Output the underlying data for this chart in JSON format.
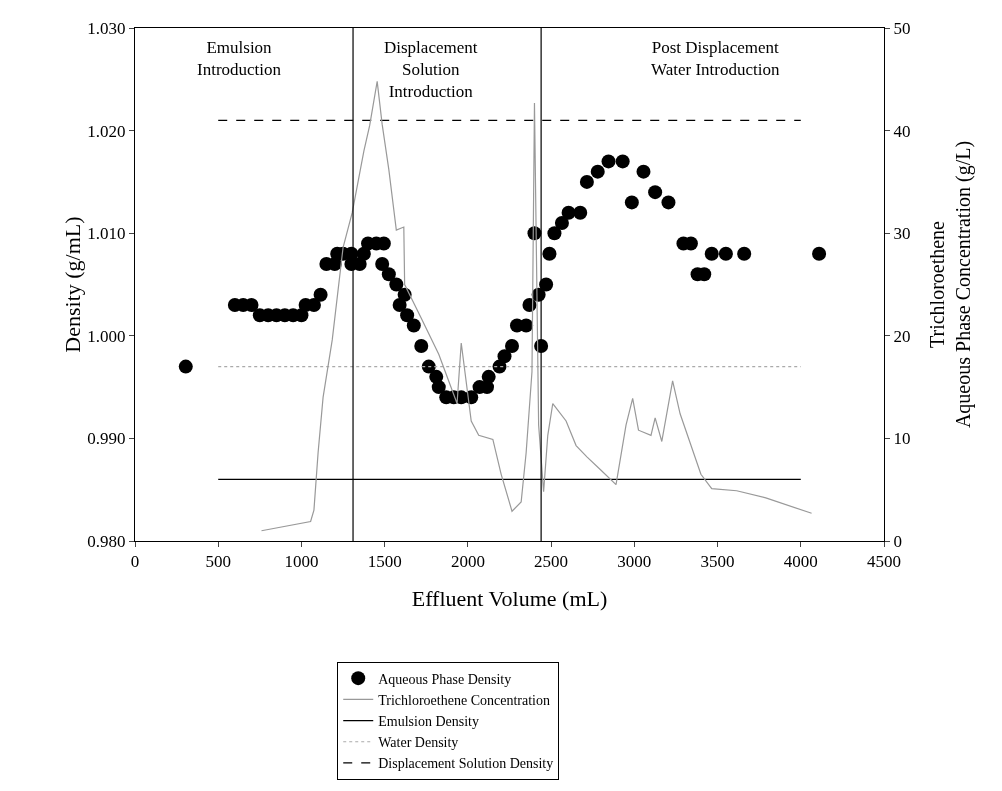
{
  "chart_data": {
    "type": "line",
    "xlabel": "Effluent Volume (mL)",
    "ylabel": "Density (g/mL)",
    "y2label": "Trichloroethene\nAqueous Phase Concentration (g/L)",
    "xlim": [
      0,
      4500
    ],
    "xticks": [
      0,
      500,
      1000,
      1500,
      2000,
      2500,
      3000,
      3500,
      4000,
      4500
    ],
    "ylim": [
      0.98,
      1.03
    ],
    "yticks": [
      {
        "value": 0.98,
        "label": "0.980"
      },
      {
        "value": 0.99,
        "label": "0.990"
      },
      {
        "value": 1.0,
        "label": "1.000"
      },
      {
        "value": 1.01,
        "label": "1.010"
      },
      {
        "value": 1.02,
        "label": "1.020"
      },
      {
        "value": 1.03,
        "label": "1.030"
      }
    ],
    "y2lim": [
      0,
      50
    ],
    "y2ticks": [
      0,
      10,
      20,
      30,
      40,
      50
    ],
    "grid": false,
    "legend": "bottom",
    "annotations": [
      "Emulsion\nIntroduction",
      "Displacement\nSolution\nIntroduction",
      "Post Displacement\nWater Introduction"
    ],
    "ref_lines": [
      {
        "axis": "x",
        "value": 1310,
        "color": "#000000"
      },
      {
        "axis": "x",
        "value": 2440,
        "color": "#000000"
      }
    ],
    "series": [
      {
        "name": "Aqueous Phase Density",
        "type": "scatter",
        "marker": "circle",
        "color": "#000000",
        "x": [
          305,
          600,
          650,
          700,
          750,
          800,
          850,
          900,
          950,
          1000,
          1025,
          1075,
          1115,
          1150,
          1200,
          1215,
          1250,
          1300,
          1300,
          1350,
          1375,
          1400,
          1450,
          1495,
          1485,
          1525,
          1570,
          1590,
          1620,
          1635,
          1675,
          1720,
          1765,
          1810,
          1825,
          1870,
          1915,
          1960,
          2020,
          2070,
          2115,
          2125,
          2190,
          2220,
          2265,
          2295,
          2350,
          2370,
          2400,
          2425,
          2440,
          2470,
          2490,
          2520,
          2565,
          2605,
          2675,
          2715,
          2780,
          2845,
          2930,
          2985,
          3055,
          3125,
          3205,
          3295,
          3340,
          3380,
          3420,
          3465,
          3550,
          3660,
          4110
        ],
        "values": [
          0.997,
          1.003,
          1.003,
          1.003,
          1.002,
          1.002,
          1.002,
          1.002,
          1.002,
          1.002,
          1.003,
          1.003,
          1.004,
          1.007,
          1.007,
          1.008,
          1.008,
          1.008,
          1.007,
          1.007,
          1.008,
          1.009,
          1.009,
          1.009,
          1.007,
          1.006,
          1.005,
          1.003,
          1.004,
          1.002,
          1.001,
          0.999,
          0.997,
          0.996,
          0.995,
          0.994,
          0.994,
          0.994,
          0.994,
          0.995,
          0.995,
          0.996,
          0.997,
          0.998,
          0.999,
          1.001,
          1.001,
          1.003,
          1.01,
          1.004,
          0.999,
          1.005,
          1.008,
          1.01,
          1.011,
          1.012,
          1.012,
          1.015,
          1.016,
          1.017,
          1.017,
          1.013,
          1.016,
          1.014,
          1.013,
          1.009,
          1.009,
          1.006,
          1.006,
          1.008,
          1.008,
          1.008,
          1.008
        ]
      },
      {
        "name": "Trichloroethene Concentration",
        "axis": "y2",
        "line_style": "solid",
        "color": "#999999",
        "x": [
          760,
          1055,
          1075,
          1100,
          1130,
          1185,
          1250,
          1305,
          1375,
          1410,
          1455,
          1485,
          1525,
          1570,
          1615,
          1620,
          1720,
          1825,
          1935,
          1960,
          2020,
          2065,
          2150,
          2200,
          2265,
          2320,
          2350,
          2385,
          2400,
          2425,
          2455,
          2480,
          2510,
          2590,
          2650,
          2715,
          2800,
          2890,
          2950,
          2990,
          3025,
          3100,
          3125,
          3165,
          3230,
          3275,
          3400,
          3465,
          3615,
          3790,
          4065
        ],
        "values": [
          1.0,
          1.9,
          3,
          8.6,
          14,
          19.6,
          28.6,
          32,
          38,
          40.5,
          44.8,
          40.6,
          36.2,
          30.3,
          30.6,
          25,
          21.7,
          18.2,
          13.4,
          19.3,
          11.7,
          10.3,
          9.9,
          6.5,
          2.9,
          3.8,
          8.6,
          16.5,
          42.7,
          11.3,
          4.8,
          10.3,
          13.4,
          11.7,
          9.3,
          8.2,
          6.9,
          5.5,
          11.3,
          13.9,
          10.8,
          10.3,
          12,
          9.7,
          15.6,
          12.4,
          6.5,
          5.1,
          4.9,
          4.2,
          2.7
        ]
      },
      {
        "name": "Emulsion Density",
        "line_style": "solid",
        "color": "#000000",
        "x": [
          500,
          4000
        ],
        "values": [
          0.986,
          0.986
        ]
      },
      {
        "name": "Water Density",
        "line_style": "dotted",
        "color": "#aaaaaa",
        "x": [
          500,
          4000
        ],
        "values": [
          0.997,
          0.997
        ]
      },
      {
        "name": "Displacement Solution Density",
        "line_style": "dashed",
        "color": "#000000",
        "x": [
          500,
          4000
        ],
        "values": [
          1.021,
          1.021
        ]
      }
    ]
  }
}
